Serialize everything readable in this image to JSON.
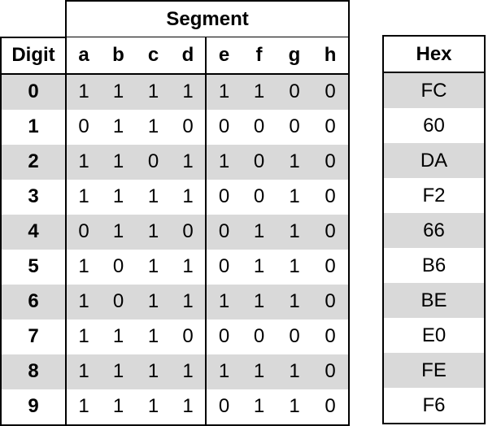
{
  "segment_header": "Segment",
  "digit_header": "Digit",
  "segment_labels": [
    "a",
    "b",
    "c",
    "d",
    "e",
    "f",
    "g",
    "h"
  ],
  "hex_header": "Hex",
  "rows": [
    {
      "digit": "0",
      "bits": [
        "1",
        "1",
        "1",
        "1",
        "1",
        "1",
        "0",
        "0"
      ],
      "hex": "FC"
    },
    {
      "digit": "1",
      "bits": [
        "0",
        "1",
        "1",
        "0",
        "0",
        "0",
        "0",
        "0"
      ],
      "hex": "60"
    },
    {
      "digit": "2",
      "bits": [
        "1",
        "1",
        "0",
        "1",
        "1",
        "0",
        "1",
        "0"
      ],
      "hex": "DA"
    },
    {
      "digit": "3",
      "bits": [
        "1",
        "1",
        "1",
        "1",
        "0",
        "0",
        "1",
        "0"
      ],
      "hex": "F2"
    },
    {
      "digit": "4",
      "bits": [
        "0",
        "1",
        "1",
        "0",
        "0",
        "1",
        "1",
        "0"
      ],
      "hex": "66"
    },
    {
      "digit": "5",
      "bits": [
        "1",
        "0",
        "1",
        "1",
        "0",
        "1",
        "1",
        "0"
      ],
      "hex": "B6"
    },
    {
      "digit": "6",
      "bits": [
        "1",
        "0",
        "1",
        "1",
        "1",
        "1",
        "1",
        "0"
      ],
      "hex": "BE"
    },
    {
      "digit": "7",
      "bits": [
        "1",
        "1",
        "1",
        "0",
        "0",
        "0",
        "0",
        "0"
      ],
      "hex": "E0"
    },
    {
      "digit": "8",
      "bits": [
        "1",
        "1",
        "1",
        "1",
        "1",
        "1",
        "1",
        "0"
      ],
      "hex": "FE"
    },
    {
      "digit": "9",
      "bits": [
        "1",
        "1",
        "1",
        "1",
        "0",
        "1",
        "1",
        "0"
      ],
      "hex": "F6"
    }
  ],
  "colors": {
    "shaded_row": "#d9d9d9",
    "border": "#000000"
  }
}
